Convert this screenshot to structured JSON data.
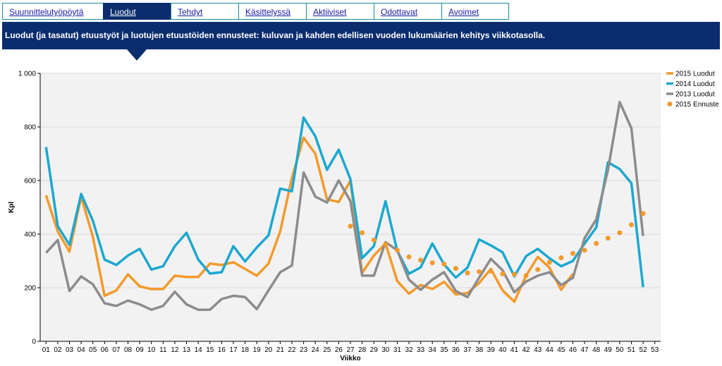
{
  "tabs": [
    {
      "label": "Suunnittelutyöpöytä",
      "active": false
    },
    {
      "label": "Luodut",
      "active": true
    },
    {
      "label": "Tehdyt",
      "active": false
    },
    {
      "label": "Käsittelyssä",
      "active": false
    },
    {
      "label": "Aktiiviset",
      "active": false
    },
    {
      "label": "Odottavat",
      "active": false
    },
    {
      "label": "Avoimet",
      "active": false
    }
  ],
  "banner": {
    "title": "Luodut (ja tasatut) etuustyöt ja luotujen etuustöiden ennusteet: kuluvan ja kahden edellisen vuoden lukumäärien kehitys viikkotasolla."
  },
  "colors": {
    "banner_bg": "#0b2d6e",
    "tab_text": "#1a1aa6",
    "tab_border": "#1b8a9a",
    "plot_bg": "#f2f2f2",
    "gridline": "#d9d9d9"
  },
  "chart_data": {
    "type": "line",
    "title": "",
    "xlabel": "Viikko",
    "ylabel": "Kpl",
    "ylim": [
      0,
      1000
    ],
    "yticks": [
      0,
      200,
      400,
      600,
      800,
      1000
    ],
    "ytick_labels": [
      "0",
      "200",
      "400",
      "600",
      "800",
      "1 000"
    ],
    "categories": [
      "01",
      "02",
      "03",
      "04",
      "05",
      "06",
      "07",
      "08",
      "09",
      "10",
      "11",
      "12",
      "13",
      "14",
      "15",
      "16",
      "17",
      "18",
      "19",
      "20",
      "21",
      "22",
      "23",
      "24",
      "25",
      "26",
      "27",
      "28",
      "29",
      "30",
      "31",
      "32",
      "33",
      "34",
      "35",
      "36",
      "37",
      "38",
      "39",
      "40",
      "41",
      "42",
      "43",
      "44",
      "45",
      "46",
      "47",
      "48",
      "49",
      "50",
      "51",
      "52",
      "53"
    ],
    "grid": true,
    "legend_position": "right",
    "series": [
      {
        "name": "2015 Luodut",
        "style": "line",
        "color": "#f39a2c",
        "values": [
          545,
          410,
          335,
          540,
          390,
          170,
          190,
          250,
          205,
          195,
          195,
          245,
          240,
          240,
          290,
          285,
          295,
          270,
          245,
          290,
          410,
          610,
          760,
          700,
          530,
          520,
          600,
          255,
          320,
          365,
          225,
          178,
          210,
          195,
          222,
          175,
          180,
          218,
          270,
          190,
          148,
          245,
          315,
          275,
          192,
          252,
          null,
          null,
          null,
          null,
          null,
          null,
          null
        ]
      },
      {
        "name": "2014 Luodut",
        "style": "line",
        "color": "#1ba8cf",
        "values": [
          725,
          430,
          360,
          550,
          450,
          305,
          285,
          320,
          345,
          268,
          280,
          355,
          405,
          305,
          253,
          258,
          355,
          298,
          350,
          395,
          570,
          560,
          835,
          765,
          640,
          715,
          605,
          310,
          355,
          523,
          338,
          252,
          276,
          365,
          287,
          238,
          275,
          380,
          358,
          332,
          242,
          318,
          345,
          310,
          280,
          300,
          365,
          425,
          668,
          643,
          590,
          202,
          null
        ]
      },
      {
        "name": "2013 Luodut",
        "style": "line",
        "color": "#8c8c8c",
        "values": [
          330,
          378,
          188,
          242,
          213,
          142,
          132,
          152,
          138,
          118,
          132,
          185,
          138,
          118,
          118,
          158,
          170,
          165,
          120,
          190,
          258,
          283,
          630,
          540,
          518,
          600,
          523,
          245,
          245,
          370,
          340,
          230,
          192,
          230,
          258,
          188,
          165,
          238,
          308,
          265,
          183,
          223,
          245,
          258,
          210,
          237,
          385,
          455,
          640,
          893,
          795,
          393,
          null
        ]
      },
      {
        "name": "2015 Ennuste",
        "style": "dots",
        "color": "#f39a2c",
        "values": [
          null,
          null,
          null,
          null,
          null,
          null,
          null,
          null,
          null,
          null,
          null,
          null,
          null,
          null,
          null,
          null,
          null,
          null,
          null,
          null,
          null,
          null,
          null,
          null,
          null,
          null,
          430,
          405,
          378,
          362,
          340,
          315,
          303,
          293,
          288,
          272,
          255,
          260,
          262,
          252,
          250,
          245,
          268,
          295,
          312,
          328,
          340,
          365,
          385,
          405,
          435,
          477,
          null
        ]
      }
    ]
  }
}
